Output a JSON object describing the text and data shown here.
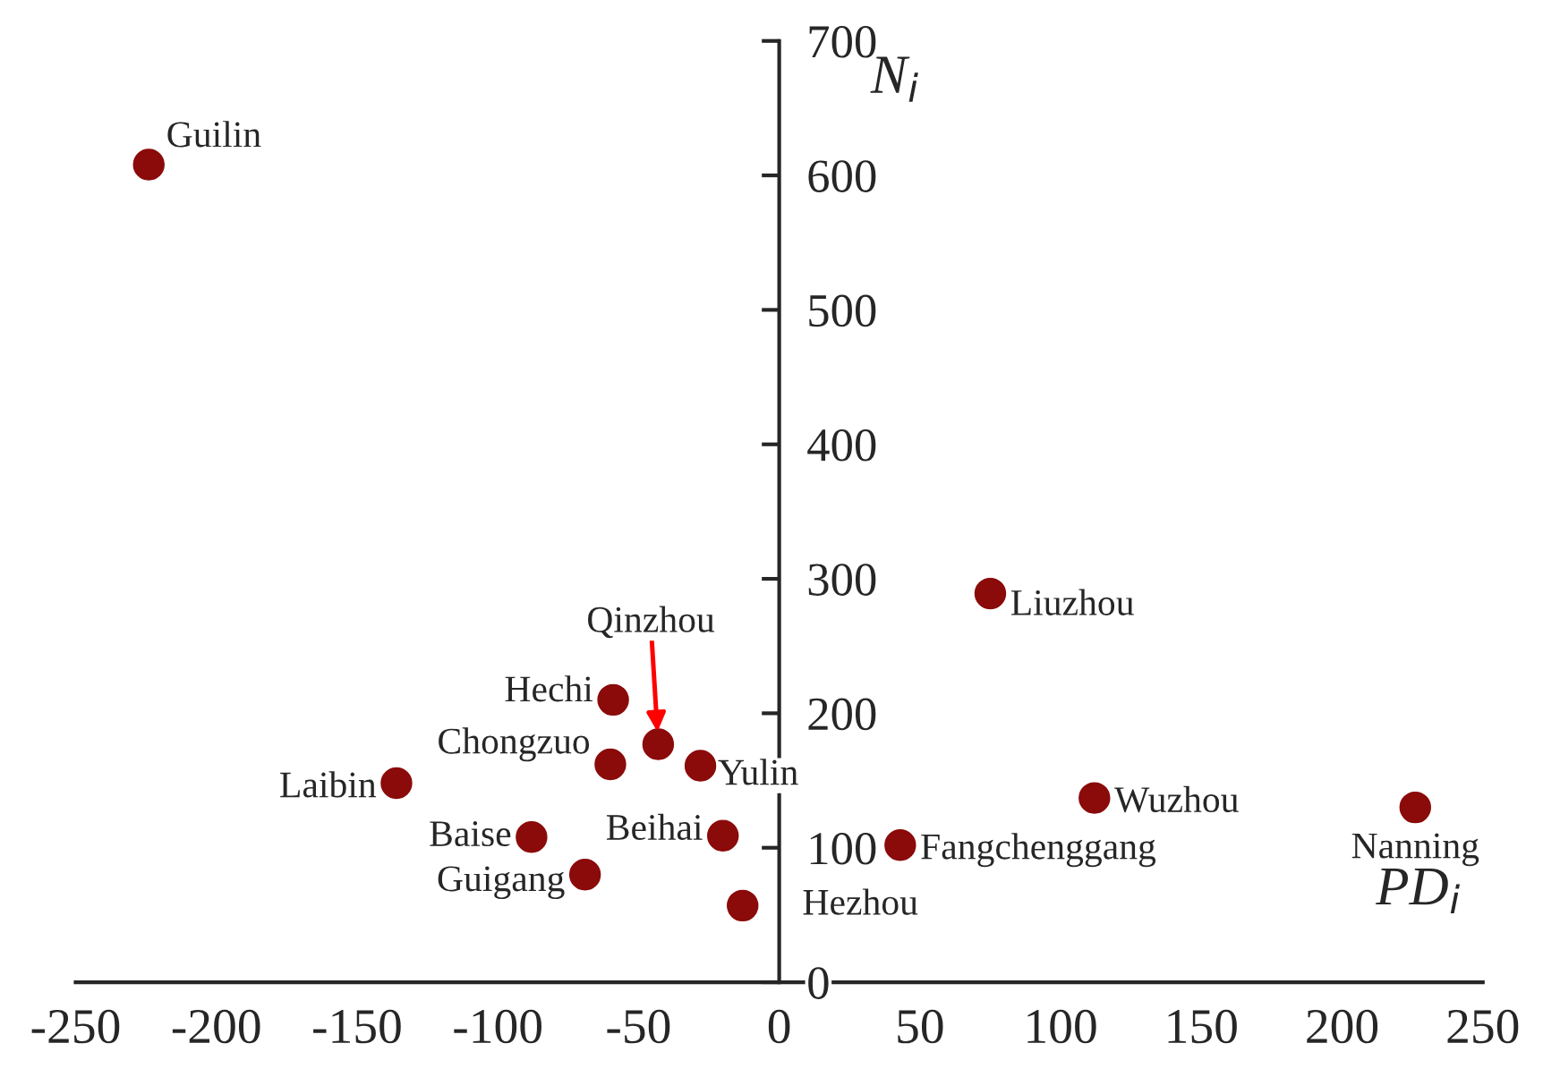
{
  "chart_data": {
    "type": "scatter",
    "xlabel": "PD$_{i}$",
    "ylabel": "N$_{i}$",
    "x": [
      -224,
      75,
      -59,
      -43,
      -60,
      -28,
      -136,
      -88,
      -20,
      -69,
      -13,
      43,
      112,
      226
    ],
    "series": [
      {
        "color": "#8b0a0a",
        "values": [
          608,
          289,
          210,
          177,
          162,
          161,
          148,
          108,
          109,
          80,
          57,
          102,
          137,
          130
        ]
      }
    ],
    "marker": "circle",
    "xlim": [
      -250,
      250
    ],
    "ylim": [
      0,
      700
    ],
    "xticks": [
      -250,
      -200,
      -150,
      -100,
      -50,
      0,
      50,
      100,
      150,
      200,
      250
    ],
    "yticks": [
      0,
      100,
      200,
      300,
      400,
      500,
      600,
      700
    ],
    "grid": false,
    "legend": false,
    "annotations": [
      {
        "text": "Guilin",
        "x": -224,
        "y": 608
      },
      {
        "text": "Liuzhou",
        "x": 75,
        "y": 289
      },
      {
        "text": "Hechi",
        "x": -59,
        "y": 210
      },
      {
        "text": "Qinzhou",
        "x": -43,
        "y": 177
      },
      {
        "text": "Chongzuo",
        "x": -60,
        "y": 162
      },
      {
        "text": "Yulin",
        "x": -28,
        "y": 161
      },
      {
        "text": "Laibin",
        "x": -136,
        "y": 148
      },
      {
        "text": "Baise",
        "x": -88,
        "y": 108
      },
      {
        "text": "Beihai",
        "x": -20,
        "y": 109
      },
      {
        "text": "Guigang",
        "x": -69,
        "y": 80
      },
      {
        "text": "Hezhou",
        "x": -13,
        "y": 57
      },
      {
        "text": "Fangchenggang",
        "x": 43,
        "y": 102
      },
      {
        "text": "Wuzhou",
        "x": 112,
        "y": 137
      },
      {
        "text": "Nanning",
        "x": 226,
        "y": 130
      }
    ]
  }
}
